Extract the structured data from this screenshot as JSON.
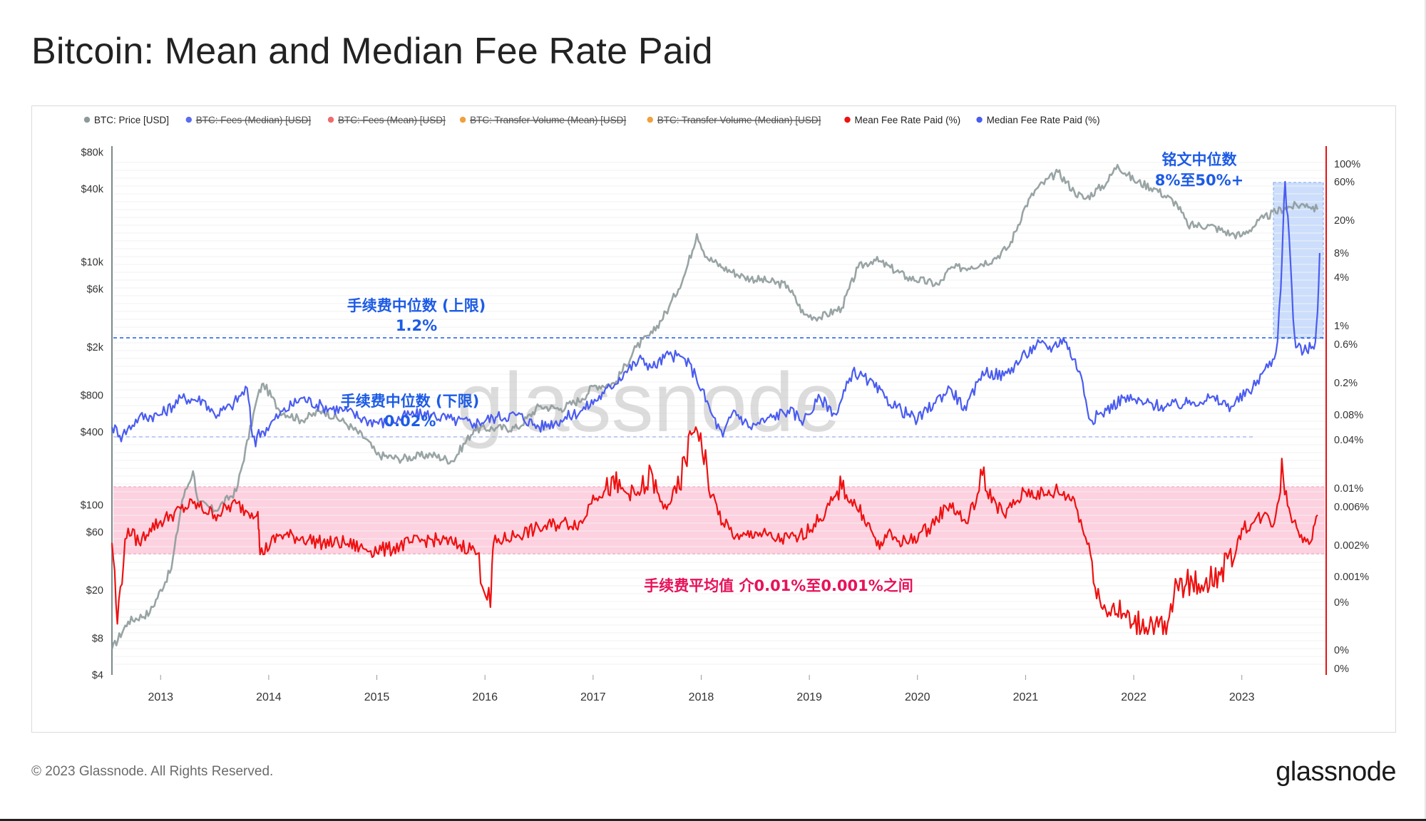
{
  "title": "Bitcoin: Mean and Median Fee Rate Paid",
  "footer": {
    "copyright": "© 2023 Glassnode. All Rights Reserved.",
    "logo": "glassnode"
  },
  "watermark": "glassnode",
  "chart_data": {
    "type": "line",
    "title": "Bitcoin: Mean and Median Fee Rate Paid",
    "x_range": [
      2012.55,
      2023.75
    ],
    "x_ticks": [
      "2013",
      "2014",
      "2015",
      "2016",
      "2017",
      "2018",
      "2019",
      "2020",
      "2021",
      "2022",
      "2023"
    ],
    "y_left": {
      "scale": "log",
      "range": [
        4,
        90000
      ],
      "ticks": [
        {
          "label": "$80k",
          "value": 80000
        },
        {
          "label": "$40k",
          "value": 40000
        },
        {
          "label": "$10k",
          "value": 10000
        },
        {
          "label": "$6k",
          "value": 6000
        },
        {
          "label": "$2k",
          "value": 2000
        },
        {
          "label": "$800",
          "value": 800
        },
        {
          "label": "$400",
          "value": 400
        },
        {
          "label": "$100",
          "value": 100
        },
        {
          "label": "$60",
          "value": 60
        },
        {
          "label": "$20",
          "value": 20
        },
        {
          "label": "$8",
          "value": 8
        },
        {
          "label": "$4",
          "value": 4
        }
      ]
    },
    "y_right": {
      "scale": "log",
      "ticks": [
        "100%",
        "60%",
        "20%",
        "8%",
        "4%",
        "1%",
        "0.6%",
        "0.2%",
        "0.08%",
        "0.04%",
        "0.01%",
        "0.006%",
        "0.002%",
        "0.001%",
        "0%",
        "0%",
        "0%"
      ]
    },
    "legend": [
      {
        "label": "BTC: Price [USD]",
        "color": "#8e9a9a",
        "active": true
      },
      {
        "label": "BTC: Fees (Median) [USD]",
        "color": "#5b6cf0",
        "active": false
      },
      {
        "label": "BTC: Fees (Mean) [USD]",
        "color": "#f06b6b",
        "active": false
      },
      {
        "label": "BTC: Transfer Volume (Mean) [USD]",
        "color": "#f0a03c",
        "active": false
      },
      {
        "label": "BTC: Transfer Volume (Median) [USD]",
        "color": "#f0a03c",
        "active": false
      },
      {
        "label": "Mean Fee Rate Paid (%)",
        "color": "#ee1111",
        "active": true
      },
      {
        "label": "Median Fee Rate Paid (%)",
        "color": "#4a5cf0",
        "active": true
      }
    ],
    "annotations": {
      "median_upper": {
        "label": "手续费中位数 (上限)",
        "value": "1.2%"
      },
      "median_lower": {
        "label": "手续费中位数 (下限)",
        "value": "0.02%"
      },
      "inscriptions": {
        "label": "铭文中位数",
        "value": "8%至50%+"
      },
      "mean_band": {
        "label": "手续费平均值 介0.01%至0.001%之间"
      }
    },
    "series": [
      {
        "name": "BTC: Price [USD]",
        "color": "#8e9a9a",
        "axis": "left",
        "x": [
          2012.55,
          2012.7,
          2012.9,
          2013.1,
          2013.2,
          2013.3,
          2013.35,
          2013.5,
          2013.7,
          2013.9,
          2013.95,
          2014.1,
          2014.3,
          2014.5,
          2014.7,
          2014.9,
          2015.0,
          2015.2,
          2015.5,
          2015.7,
          2015.9,
          2016.1,
          2016.3,
          2016.5,
          2016.7,
          2016.9,
          2017.0,
          2017.2,
          2017.4,
          2017.55,
          2017.7,
          2017.85,
          2017.96,
          2018.05,
          2018.2,
          2018.4,
          2018.6,
          2018.8,
          2018.95,
          2019.1,
          2019.3,
          2019.45,
          2019.6,
          2019.75,
          2019.9,
          2020.2,
          2020.3,
          2020.5,
          2020.7,
          2020.85,
          2021.0,
          2021.1,
          2021.3,
          2021.45,
          2021.55,
          2021.75,
          2021.85,
          2022.0,
          2022.2,
          2022.4,
          2022.5,
          2022.7,
          2022.9,
          2023.0,
          2023.2,
          2023.4,
          2023.6,
          2023.7
        ],
        "y": [
          6.5,
          11,
          13,
          30,
          110,
          190,
          105,
          90,
          130,
          800,
          1000,
          600,
          500,
          600,
          480,
          350,
          260,
          240,
          260,
          230,
          420,
          430,
          430,
          650,
          620,
          750,
          950,
          1000,
          2000,
          2600,
          4200,
          8000,
          17000,
          11000,
          9000,
          7500,
          7000,
          6400,
          3700,
          3500,
          4200,
          9000,
          10500,
          9000,
          7500,
          6500,
          8800,
          9200,
          10500,
          13500,
          29000,
          40000,
          55000,
          38000,
          33000,
          45000,
          63000,
          47000,
          40000,
          30000,
          20000,
          20000,
          17000,
          16500,
          23000,
          28000,
          30000,
          27000
        ]
      },
      {
        "name": "Median Fee Rate Paid (%)",
        "color": "#4a5cf0",
        "axis": "right",
        "x": [
          2012.55,
          2012.65,
          2012.8,
          2013.0,
          2013.2,
          2013.4,
          2013.5,
          2013.65,
          2013.8,
          2013.85,
          2013.95,
          2014.1,
          2014.3,
          2014.5,
          2014.7,
          2014.9,
          2015.1,
          2015.3,
          2015.5,
          2015.7,
          2015.9,
          2016.1,
          2016.3,
          2016.5,
          2016.7,
          2016.9,
          2017.1,
          2017.3,
          2017.45,
          2017.55,
          2017.7,
          2017.85,
          2017.95,
          2018.1,
          2018.2,
          2018.3,
          2018.45,
          2018.6,
          2018.8,
          2018.95,
          2019.1,
          2019.25,
          2019.4,
          2019.55,
          2019.7,
          2019.85,
          2020.0,
          2020.15,
          2020.3,
          2020.45,
          2020.6,
          2020.8,
          2021.0,
          2021.1,
          2021.25,
          2021.35,
          2021.5,
          2021.6,
          2021.75,
          2021.9,
          2022.1,
          2022.3,
          2022.5,
          2022.7,
          2022.9,
          2023.1,
          2023.2,
          2023.3,
          2023.36,
          2023.4,
          2023.45,
          2023.5,
          2023.6,
          2023.68,
          2023.72
        ],
        "y": [
          0.03,
          0.022,
          0.045,
          0.05,
          0.1,
          0.09,
          0.05,
          0.07,
          0.15,
          0.02,
          0.025,
          0.05,
          0.1,
          0.07,
          0.06,
          0.04,
          0.035,
          0.05,
          0.05,
          0.04,
          0.035,
          0.045,
          0.05,
          0.03,
          0.04,
          0.06,
          0.12,
          0.3,
          0.5,
          0.35,
          0.6,
          0.5,
          0.25,
          0.05,
          0.02,
          0.06,
          0.03,
          0.04,
          0.06,
          0.04,
          0.1,
          0.05,
          0.3,
          0.2,
          0.1,
          0.06,
          0.04,
          0.08,
          0.15,
          0.06,
          0.3,
          0.25,
          0.6,
          0.9,
          0.8,
          1.2,
          0.3,
          0.04,
          0.06,
          0.1,
          0.08,
          0.07,
          0.08,
          0.1,
          0.07,
          0.15,
          0.3,
          0.5,
          3,
          50,
          5,
          0.8,
          0.7,
          1.0,
          6
        ]
      },
      {
        "name": "Mean Fee Rate Paid (%)",
        "color": "#ee1111",
        "axis": "right",
        "x": [
          2012.55,
          2012.6,
          2012.7,
          2012.8,
          2012.9,
          2013.1,
          2013.3,
          2013.5,
          2013.7,
          2013.8,
          2013.9,
          2013.92,
          2014.1,
          2014.3,
          2014.5,
          2014.7,
          2014.9,
          2015.1,
          2015.3,
          2015.5,
          2015.7,
          2015.9,
          2016.05,
          2016.08,
          2016.3,
          2016.5,
          2016.7,
          2016.9,
          2017.0,
          2017.2,
          2017.4,
          2017.55,
          2017.65,
          2017.8,
          2017.95,
          2018.1,
          2018.2,
          2018.35,
          2018.5,
          2018.7,
          2018.9,
          2019.1,
          2019.3,
          2019.5,
          2019.65,
          2019.7,
          2019.9,
          2020.1,
          2020.3,
          2020.45,
          2020.6,
          2020.8,
          2021.0,
          2021.2,
          2021.3,
          2021.45,
          2021.6,
          2021.7,
          2021.8,
          2022.0,
          2022.2,
          2022.3,
          2022.4,
          2022.6,
          2022.8,
          2022.95,
          2023.0,
          2023.1,
          2023.2,
          2023.3,
          2023.37,
          2023.45,
          2023.55,
          2023.65,
          2023.7
        ],
        "y": [
          0.0015,
          0.0003,
          0.0025,
          0.0015,
          0.0025,
          0.004,
          0.006,
          0.004,
          0.006,
          0.0045,
          0.0045,
          0.001,
          0.002,
          0.0018,
          0.0015,
          0.0015,
          0.0012,
          0.0012,
          0.0015,
          0.0017,
          0.0015,
          0.0012,
          0.0004,
          0.0015,
          0.002,
          0.0025,
          0.003,
          0.003,
          0.008,
          0.01,
          0.008,
          0.012,
          0.005,
          0.01,
          0.03,
          0.008,
          0.003,
          0.0017,
          0.0022,
          0.0017,
          0.0018,
          0.0035,
          0.01,
          0.004,
          0.0012,
          0.002,
          0.0015,
          0.0025,
          0.006,
          0.003,
          0.012,
          0.004,
          0.009,
          0.008,
          0.009,
          0.007,
          0.001,
          0.0004,
          0.0004,
          0.0003,
          0.0003,
          0.00025,
          0.0006,
          0.0006,
          0.0007,
          0.0012,
          0.0025,
          0.003,
          0.004,
          0.003,
          0.015,
          0.004,
          0.002,
          0.0017,
          0.004
        ]
      }
    ]
  }
}
